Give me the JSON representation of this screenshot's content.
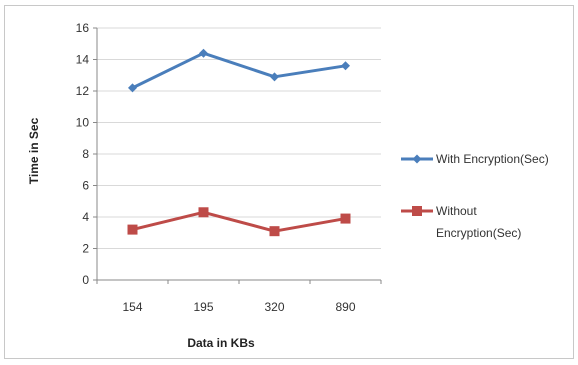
{
  "chart_data": {
    "type": "line",
    "title": "",
    "xlabel": "Data in KBs",
    "ylabel": "Time in Sec",
    "categories": [
      "154",
      "195",
      "320",
      "890"
    ],
    "ylim": [
      0,
      16
    ],
    "yticks": [
      0,
      2,
      4,
      6,
      8,
      10,
      12,
      14,
      16
    ],
    "grid": true,
    "legend_position": "right",
    "series": [
      {
        "name": "With Encryption(Sec)",
        "legend_lines": [
          "With Encryption(Sec)"
        ],
        "values": [
          12.2,
          14.4,
          12.9,
          13.6
        ],
        "color": "#4a7ebb",
        "marker": "diamond"
      },
      {
        "name": "Without Encryption(Sec)",
        "legend_lines": [
          "Without",
          "Encryption(Sec)"
        ],
        "values": [
          3.2,
          4.3,
          3.1,
          3.9
        ],
        "color": "#be4b48",
        "marker": "square"
      }
    ]
  }
}
